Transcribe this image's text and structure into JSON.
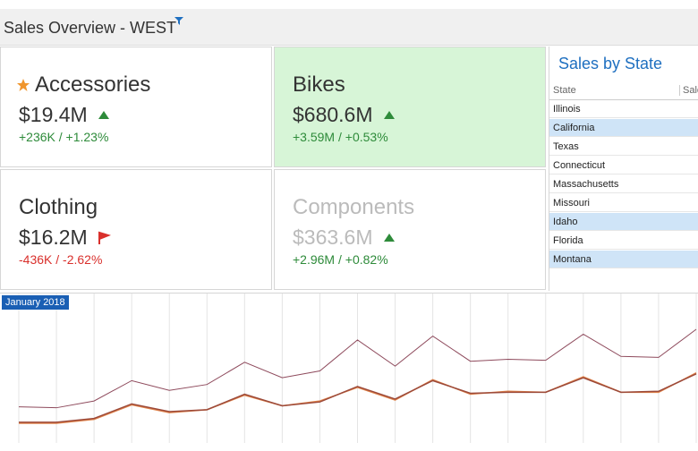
{
  "header": {
    "title": "Sales Overview - WEST"
  },
  "cards": [
    {
      "name": "Accessories",
      "value": "$19.4M",
      "delta": "+236K",
      "percent": "+1.23%",
      "indicator": "up",
      "star": true,
      "highlight": false,
      "muted": false
    },
    {
      "name": "Bikes",
      "value": "$680.6M",
      "delta": "+3.59M",
      "percent": "+0.53%",
      "indicator": "up",
      "star": false,
      "highlight": true,
      "muted": false
    },
    {
      "name": "Clothing",
      "value": "$16.2M",
      "delta": "-436K",
      "percent": "-2.62%",
      "indicator": "flag",
      "star": false,
      "highlight": false,
      "muted": false
    },
    {
      "name": "Components",
      "value": "$363.6M",
      "delta": "+2.96M",
      "percent": "+0.82%",
      "indicator": "up",
      "star": false,
      "highlight": false,
      "muted": true
    }
  ],
  "grid": {
    "title": "Sales by State",
    "columns": [
      "State",
      "Sale"
    ],
    "rows": [
      "Illinois",
      "California",
      "Texas",
      "Connecticut",
      "Massachusetts",
      "Missouri",
      "Idaho",
      "Florida",
      "Montana"
    ],
    "selected": [
      1,
      6,
      8
    ]
  },
  "chart_data": {
    "type": "line",
    "label": "January 2018",
    "series": [
      {
        "color": "#8e4a5c",
        "values": [
          47,
          46,
          53,
          74,
          64,
          70,
          93,
          77,
          84,
          116,
          89,
          120,
          94,
          96,
          95,
          122,
          99,
          98,
          127
        ]
      },
      {
        "color": "#e0834a",
        "values": [
          30,
          30,
          34,
          49,
          41,
          44,
          59,
          48,
          53,
          67,
          54,
          75,
          60,
          63,
          62,
          78,
          62,
          62,
          82
        ]
      },
      {
        "color": "#9c4a3a",
        "values": [
          31,
          31,
          35,
          50,
          42,
          44,
          60,
          48,
          52,
          68,
          55,
          74,
          61,
          62,
          62,
          77,
          62,
          63,
          81
        ]
      }
    ]
  }
}
